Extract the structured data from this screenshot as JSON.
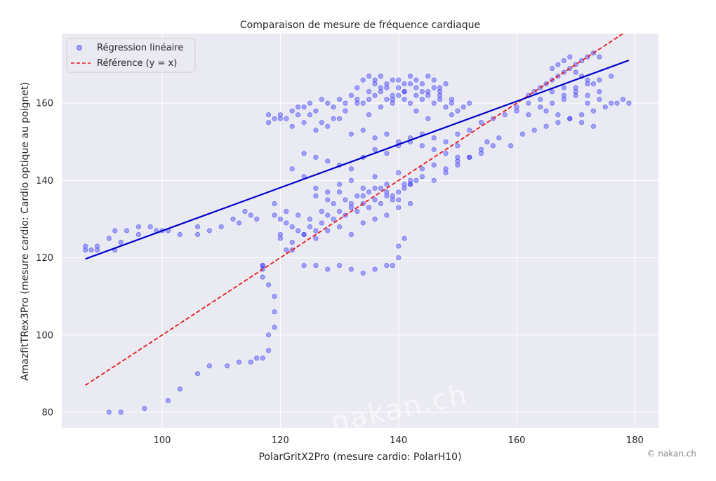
{
  "chart_data": {
    "type": "scatter",
    "title": "Comparaison de mesure de fréquence cardiaque",
    "xlabel": "PolarGritX2Pro (mesure cardio: PolarH10)",
    "ylabel": "AmazfitTRex3Pro (mesure cardio: Cardio optique au poignet)",
    "xlim": [
      83,
      184
    ],
    "ylim": [
      76,
      178
    ],
    "xticks": [
      100,
      120,
      140,
      160,
      180
    ],
    "yticks": [
      80,
      100,
      120,
      140,
      160
    ],
    "grid": true,
    "legend_position": "top-left",
    "legend": [
      "Régression linéaire",
      "Référence (y = x)"
    ],
    "colors": {
      "points": "#3333ff",
      "regression": "#0000cc",
      "reference": "#e41a1c",
      "plot_bg": "#eaeaf2",
      "grid": "#ffffff"
    },
    "regression_line": {
      "x": [
        87,
        179
      ],
      "y": [
        119.7,
        171.1
      ]
    },
    "reference_line": {
      "x": [
        87,
        178
      ],
      "y": [
        87,
        178
      ]
    },
    "scatter_groups": [
      {
        "x": [
          87,
          87,
          88,
          89,
          89,
          91,
          92,
          92,
          93,
          94,
          96,
          96,
          98,
          99,
          100,
          101,
          103,
          106,
          106,
          108,
          110,
          112,
          113,
          114,
          115,
          116
        ],
        "y": [
          123,
          122,
          122,
          123,
          122,
          125,
          127,
          122,
          124,
          127,
          128,
          126,
          128,
          127,
          127,
          127,
          126,
          128,
          126,
          127,
          128,
          130,
          129,
          132,
          131,
          130
        ]
      },
      {
        "x": [
          91,
          93,
          97,
          101,
          103,
          106,
          108,
          111,
          113,
          115,
          116,
          117,
          118,
          118,
          119,
          119,
          119,
          118,
          117,
          117,
          117,
          117
        ],
        "y": [
          80,
          80,
          81,
          83,
          86,
          90,
          92,
          92,
          93,
          93,
          94,
          94,
          96,
          100,
          102,
          106,
          110,
          113,
          115,
          117,
          118,
          118
        ]
      },
      {
        "x": [
          119,
          119,
          120,
          121,
          122,
          124,
          126,
          128,
          130,
          132,
          134,
          136,
          138,
          139,
          140,
          140,
          141
        ],
        "y": [
          134,
          131,
          126,
          122,
          122,
          118,
          118,
          117,
          118,
          117,
          116,
          117,
          118,
          118,
          120,
          123,
          125
        ]
      },
      {
        "x": [
          118,
          119,
          120,
          121,
          122,
          123,
          124,
          125,
          126,
          127,
          128,
          129,
          130,
          131,
          132,
          133,
          134,
          135,
          136,
          137,
          138,
          139,
          140,
          141,
          142,
          143,
          144,
          145,
          146,
          147,
          148,
          149,
          150,
          151,
          152,
          118,
          120,
          122,
          124,
          126,
          128,
          130,
          132,
          134,
          136,
          138,
          140,
          142,
          144,
          146,
          148,
          150,
          123,
          125,
          127,
          129,
          131,
          133,
          135,
          137,
          139,
          141,
          143,
          145,
          147,
          149
        ],
        "y": [
          157,
          156,
          157,
          156,
          158,
          157,
          159,
          160,
          158,
          161,
          160,
          159,
          161,
          160,
          162,
          161,
          160,
          161,
          162,
          163,
          161,
          160,
          162,
          161,
          160,
          162,
          161,
          163,
          160,
          161,
          159,
          160,
          158,
          159,
          160,
          155,
          156,
          154,
          155,
          153,
          154,
          156,
          152,
          153,
          151,
          152,
          150,
          151,
          149,
          148,
          147,
          146,
          159,
          157,
          155,
          156,
          158,
          160,
          157,
          159,
          161,
          163,
          158,
          156,
          162,
          157
        ]
      },
      {
        "x": [
          134,
          135,
          136,
          137,
          138,
          139,
          140,
          141,
          142,
          143,
          144,
          145,
          146,
          147,
          148,
          133,
          135,
          137,
          139,
          141,
          143,
          145,
          147,
          149,
          136,
          138,
          140,
          142,
          144,
          146
        ],
        "y": [
          166,
          167,
          166,
          167,
          165,
          166,
          164,
          165,
          167,
          166,
          165,
          167,
          166,
          164,
          165,
          164,
          163,
          164,
          162,
          163,
          164,
          162,
          163,
          161,
          165,
          164,
          166,
          165,
          163,
          164
        ]
      },
      {
        "x": [
          122,
          124,
          126,
          128,
          130,
          132,
          134,
          136,
          138,
          140,
          142,
          144,
          146,
          148,
          150,
          152,
          154,
          124,
          126,
          128,
          130,
          132,
          134,
          136,
          138,
          140,
          142,
          144,
          146,
          148,
          150,
          126,
          128,
          130,
          132,
          134,
          136,
          138,
          140,
          142,
          144,
          146,
          148,
          150,
          152,
          154,
          156
        ],
        "y": [
          143,
          141,
          138,
          137,
          139,
          140,
          138,
          141,
          139,
          142,
          140,
          143,
          144,
          142,
          145,
          146,
          148,
          147,
          146,
          145,
          144,
          143,
          146,
          148,
          147,
          149,
          150,
          152,
          151,
          150,
          149,
          136,
          135,
          137,
          134,
          136,
          138,
          137,
          135,
          139,
          141,
          140,
          143,
          144,
          146,
          147,
          149
        ]
      },
      {
        "x": [
          120,
          121,
          122,
          123,
          124,
          125,
          126,
          127,
          128,
          129,
          130,
          131,
          132,
          133,
          134,
          135,
          136,
          137,
          138,
          139,
          140,
          141,
          142,
          143,
          120,
          122,
          124,
          126,
          128,
          130,
          132,
          134,
          136,
          138,
          140,
          142,
          121,
          123,
          125,
          127,
          129,
          131,
          133,
          135,
          137,
          139,
          141
        ],
        "y": [
          130,
          129,
          128,
          127,
          126,
          128,
          127,
          129,
          131,
          130,
          132,
          131,
          133,
          132,
          134,
          133,
          135,
          134,
          136,
          135,
          137,
          138,
          139,
          140,
          125,
          124,
          126,
          125,
          127,
          128,
          126,
          129,
          130,
          131,
          133,
          134,
          132,
          131,
          130,
          132,
          134,
          135,
          136,
          137,
          138,
          136,
          139
        ]
      },
      {
        "x": [
          150,
          152,
          154,
          156,
          158,
          160,
          162,
          164,
          166,
          168,
          170,
          172,
          174,
          176,
          178,
          179,
          155,
          157,
          159,
          161,
          163,
          165,
          167,
          169,
          171,
          173,
          175,
          177,
          160,
          162,
          164,
          166,
          168,
          170,
          172,
          174
        ],
        "y": [
          152,
          153,
          155,
          156,
          157,
          159,
          160,
          161,
          163,
          162,
          164,
          165,
          166,
          167,
          161,
          160,
          150,
          151,
          149,
          152,
          153,
          154,
          155,
          156,
          157,
          158,
          159,
          160,
          158,
          157,
          159,
          160,
          161,
          162,
          160,
          163
        ]
      },
      {
        "x": [
          162,
          163,
          164,
          165,
          166,
          167,
          168,
          169,
          170,
          171,
          172,
          173,
          174,
          166,
          167,
          168,
          169,
          170,
          171,
          172,
          173,
          168,
          170,
          172,
          174,
          176,
          165,
          167,
          169,
          171,
          173
        ],
        "y": [
          162,
          163,
          164,
          165,
          166,
          167,
          168,
          169,
          170,
          171,
          172,
          173,
          172,
          169,
          170,
          171,
          172,
          168,
          167,
          166,
          165,
          164,
          163,
          162,
          161,
          160,
          158,
          157,
          156,
          155,
          154
        ]
      }
    ]
  },
  "footer": {
    "credit": "© nakan.ch",
    "watermark": "nakan.ch"
  }
}
